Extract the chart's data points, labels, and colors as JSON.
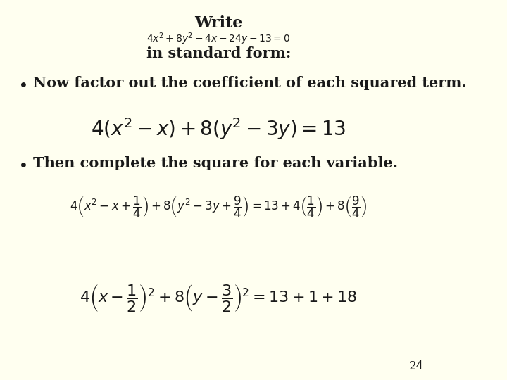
{
  "background_color": "#FFFFF0",
  "title": "Write",
  "subtitle_equation": "$4x^2+8y^2-4x-24y-13=0$",
  "subtitle_text": "in standard form:",
  "bullet1_text": "Now factor out the coefficient of each squared term.",
  "eq1": "$4(x^2-x)+8(y^2-3y)=13$",
  "bullet2_text": "Then complete the square for each variable.",
  "eq2": "$4\\left(x^2-x+\\dfrac{1}{4}\\right)+8\\left(y^2-3y+\\dfrac{9}{4}\\right)=13+4\\left(\\dfrac{1}{4}\\right)+8\\left(\\dfrac{9}{4}\\right)$",
  "eq3": "$4\\left(x-\\dfrac{1}{2}\\right)^{2}+8\\left(y-\\dfrac{3}{2}\\right)^{2}=13+1+18$",
  "page_number": "24",
  "title_fontsize": 16,
  "subtitle_eq_fontsize": 10,
  "subtitle_text_fontsize": 15,
  "bullet_fontsize": 15,
  "eq1_fontsize": 20,
  "eq2_fontsize": 12,
  "eq3_fontsize": 16,
  "page_fontsize": 12,
  "text_color": "#1a1a1a"
}
